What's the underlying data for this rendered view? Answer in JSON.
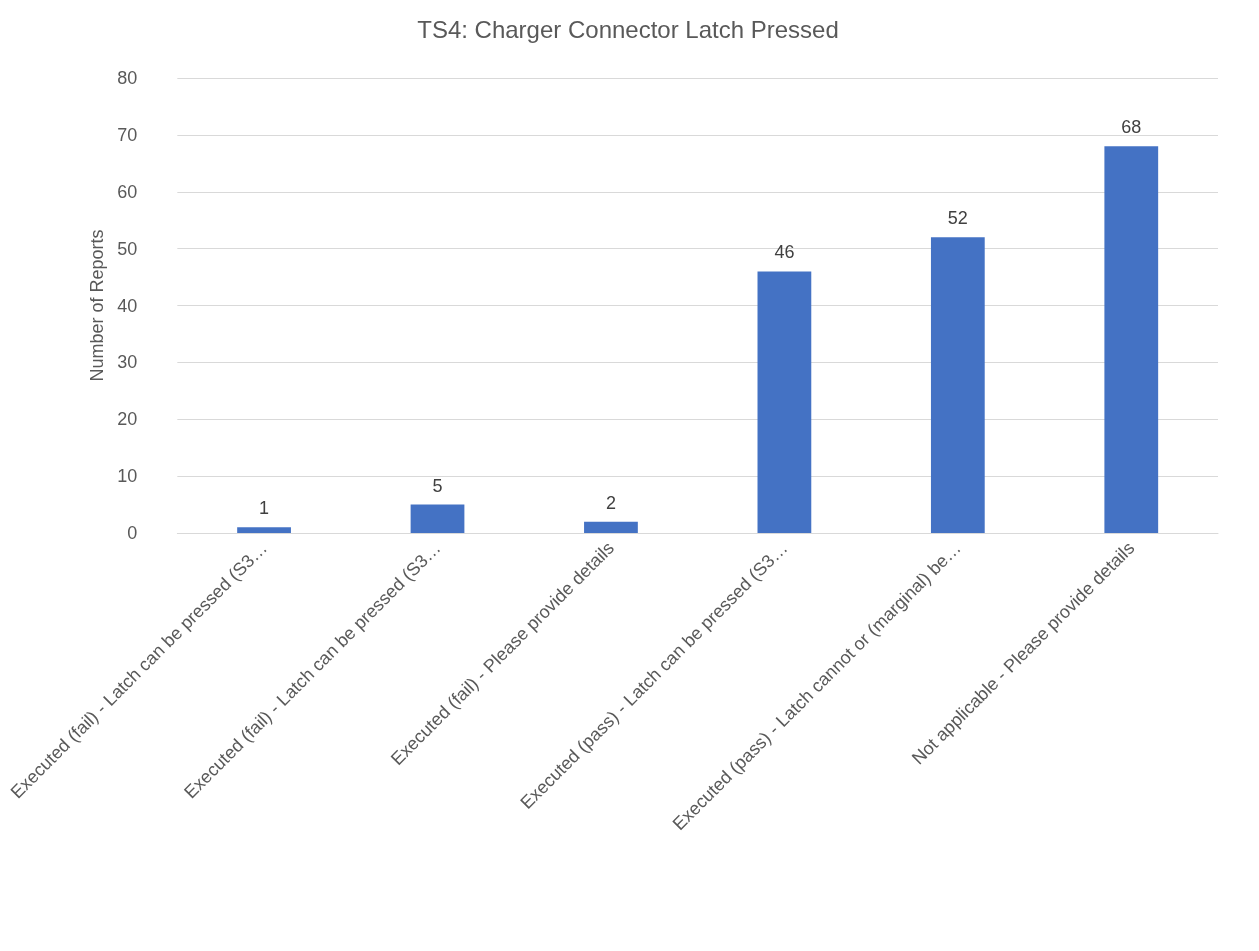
{
  "chart_data": {
    "type": "bar",
    "title": "TS4: Charger Connector Latch Pressed",
    "ylabel": "Number of Reports",
    "categories": [
      "Executed (fail) - Latch can be pressed (S3…",
      "Executed (fail) - Latch can be pressed (S3…",
      "Executed (fail) - Please provide details",
      "Executed (pass) - Latch can be pressed (S3…",
      "Executed (pass) - Latch cannot or (marginal) be…",
      "Not applicable - Please provide details"
    ],
    "values": [
      1,
      5,
      2,
      46,
      52,
      68
    ],
    "color": "#4472c4",
    "ylim": [
      0,
      80
    ],
    "yticks": [
      0,
      10,
      20,
      30,
      40,
      50,
      60,
      70,
      80
    ],
    "grid": "y",
    "data_labels": true
  }
}
